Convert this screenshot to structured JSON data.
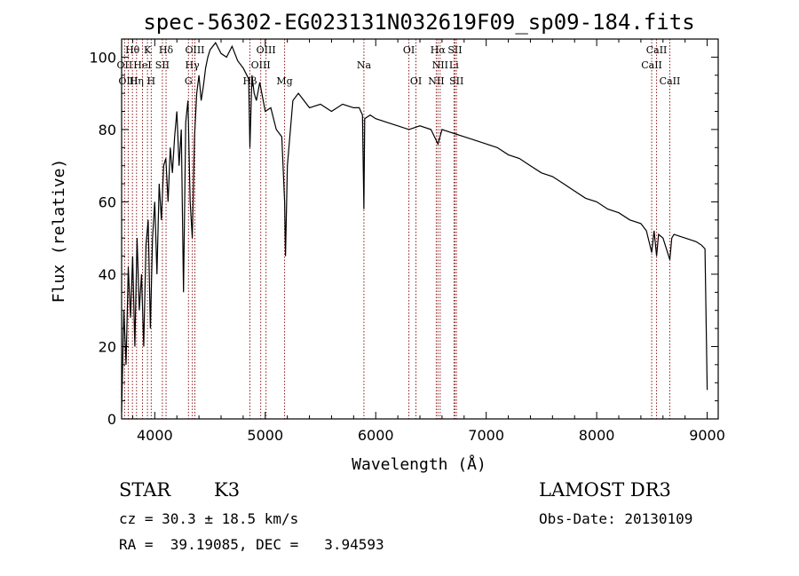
{
  "chart_data": {
    "type": "line",
    "title": "spec-56302-EG023131N032619F09_sp09-184.fits",
    "xlabel": "Wavelength (Å)",
    "ylabel": "Flux (relative)",
    "xlim": [
      3700,
      9100
    ],
    "ylim": [
      0,
      105
    ],
    "xticks": [
      4000,
      5000,
      6000,
      7000,
      8000,
      9000
    ],
    "yticks": [
      0,
      20,
      40,
      60,
      80,
      100
    ],
    "series": [
      {
        "name": "flux",
        "x": [
          3700,
          3720,
          3740,
          3760,
          3780,
          3800,
          3820,
          3840,
          3860,
          3880,
          3900,
          3920,
          3940,
          3960,
          3980,
          4000,
          4020,
          4040,
          4060,
          4080,
          4100,
          4120,
          4140,
          4160,
          4180,
          4200,
          4220,
          4240,
          4260,
          4280,
          4300,
          4320,
          4340,
          4360,
          4380,
          4400,
          4420,
          4440,
          4460,
          4480,
          4500,
          4550,
          4600,
          4650,
          4700,
          4750,
          4800,
          4850,
          4861,
          4880,
          4900,
          4920,
          4950,
          5000,
          5050,
          5100,
          5150,
          5175,
          5183,
          5200,
          5250,
          5300,
          5400,
          5500,
          5600,
          5700,
          5800,
          5850,
          5880,
          5893,
          5900,
          5950,
          6000,
          6100,
          6200,
          6300,
          6400,
          6500,
          6563,
          6600,
          6700,
          6800,
          6900,
          7000,
          7100,
          7200,
          7300,
          7400,
          7500,
          7600,
          7700,
          7800,
          7900,
          8000,
          8100,
          8200,
          8300,
          8400,
          8450,
          8498,
          8520,
          8542,
          8560,
          8600,
          8662,
          8680,
          8700,
          8800,
          8900,
          8950,
          8980,
          9000
        ],
        "values": [
          2,
          30,
          15,
          42,
          28,
          45,
          20,
          50,
          30,
          40,
          20,
          48,
          55,
          25,
          50,
          60,
          40,
          65,
          55,
          70,
          72,
          60,
          75,
          68,
          78,
          85,
          70,
          80,
          35,
          82,
          88,
          60,
          50,
          78,
          90,
          95,
          88,
          92,
          97,
          100,
          102,
          104,
          101,
          100,
          103,
          99,
          97,
          94,
          75,
          95,
          90,
          88,
          93,
          85,
          86,
          80,
          78,
          60,
          45,
          70,
          88,
          90,
          86,
          87,
          85,
          87,
          86,
          86,
          84,
          58,
          83,
          84,
          83,
          82,
          81,
          80,
          81,
          80,
          76,
          80,
          79,
          78,
          77,
          76,
          75,
          73,
          72,
          70,
          68,
          67,
          65,
          63,
          61,
          60,
          58,
          57,
          55,
          54,
          52,
          46,
          52,
          45,
          51,
          50,
          44,
          50,
          51,
          50,
          49,
          48,
          47,
          8
        ]
      }
    ],
    "spectral_lines": [
      {
        "label": "Hθ",
        "wavelength": 3798,
        "row": 1
      },
      {
        "label": "K",
        "wavelength": 3934,
        "row": 1
      },
      {
        "label": "Hδ",
        "wavelength": 4102,
        "row": 1
      },
      {
        "label": "OIII",
        "wavelength": 4363,
        "row": 1
      },
      {
        "label": "OIII",
        "wavelength": 5007,
        "row": 1
      },
      {
        "label": "OI",
        "wavelength": 6300,
        "row": 1
      },
      {
        "label": "Hα",
        "wavelength": 6563,
        "row": 1
      },
      {
        "label": "SII",
        "wavelength": 6717,
        "row": 1
      },
      {
        "label": "CaII",
        "wavelength": 8542,
        "row": 1
      },
      {
        "label": "OII",
        "wavelength": 3727,
        "row": 2
      },
      {
        "label": "HeI",
        "wavelength": 3889,
        "row": 2
      },
      {
        "label": "SII",
        "wavelength": 4069,
        "row": 2
      },
      {
        "label": "Hγ",
        "wavelength": 4340,
        "row": 2
      },
      {
        "label": "OIII",
        "wavelength": 4959,
        "row": 2
      },
      {
        "label": "Na",
        "wavelength": 5893,
        "row": 2
      },
      {
        "label": "NII",
        "wavelength": 6583,
        "row": 2
      },
      {
        "label": "Li",
        "wavelength": 6708,
        "row": 2
      },
      {
        "label": "CaII",
        "wavelength": 8498,
        "row": 2
      },
      {
        "label": "OIII",
        "wavelength": 3760,
        "row": 3
      },
      {
        "label": "Hη",
        "wavelength": 3835,
        "row": 3
      },
      {
        "label": "H",
        "wavelength": 3968,
        "row": 3
      },
      {
        "label": "G",
        "wavelength": 4305,
        "row": 3
      },
      {
        "label": "Hβ",
        "wavelength": 4861,
        "row": 3
      },
      {
        "label": "Mg",
        "wavelength": 5175,
        "row": 3
      },
      {
        "label": "OI",
        "wavelength": 6364,
        "row": 3
      },
      {
        "label": "NII",
        "wavelength": 6548,
        "row": 3
      },
      {
        "label": "SII",
        "wavelength": 6731,
        "row": 3
      },
      {
        "label": "CaII",
        "wavelength": 8662,
        "row": 3
      }
    ]
  },
  "info": {
    "object_class": "STAR",
    "subclass": "K3",
    "survey": "LAMOST DR3",
    "cz": "cz = 30.3 ± 18.5 km/s",
    "obs_date": "Obs-Date: 20130109",
    "coords": "RA =  39.19085, DEC =   3.94593"
  },
  "colors": {
    "line_marker": "#8b1a1a",
    "spectrum": "#000000"
  }
}
